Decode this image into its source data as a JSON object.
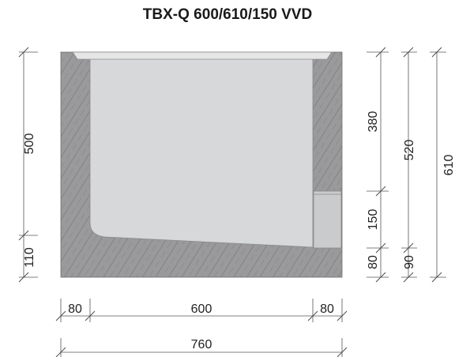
{
  "title": "TBX-Q 600/610/150 VVD",
  "dimensions": {
    "left_upper": "500",
    "left_lower": "110",
    "right_a_top": "380",
    "right_a_mid": "150",
    "right_a_bottom": "80",
    "right_b_top": "520",
    "right_b_bottom": "90",
    "right_c": "610",
    "bottom_left": "80",
    "bottom_mid": "600",
    "bottom_right": "80",
    "bottom_total": "760"
  },
  "colors": {
    "concrete": "#9a9a9c",
    "channel": "#d6d8d9",
    "grating": "#e6e6e6",
    "outlet": "#c9cbcc",
    "hatch": "#7d7d7f"
  }
}
